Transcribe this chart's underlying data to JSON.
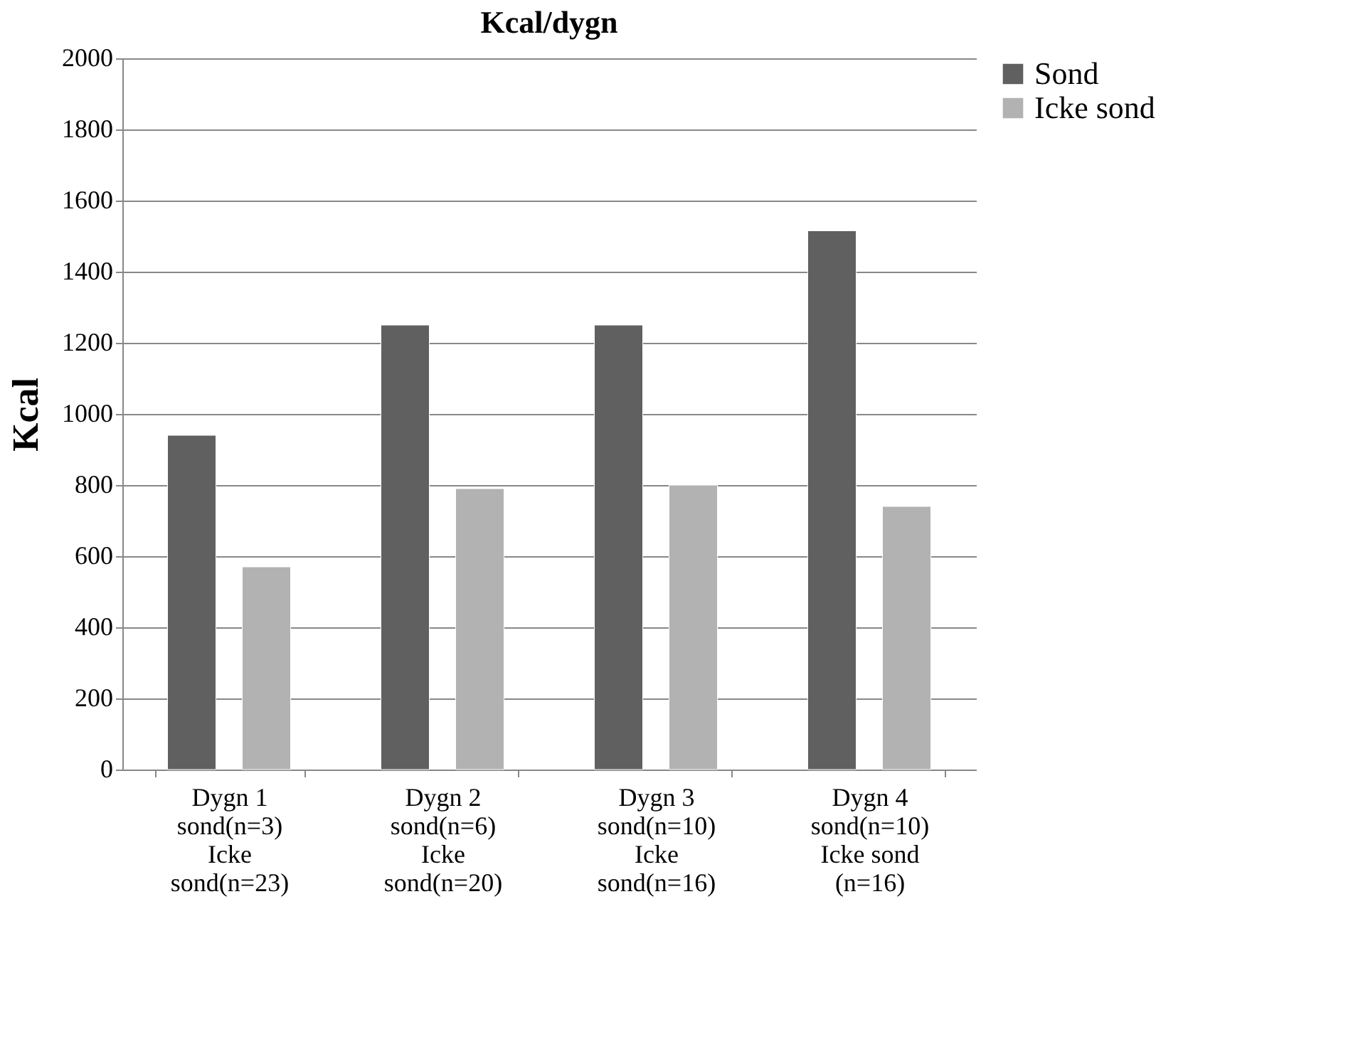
{
  "chart_data": {
    "type": "bar",
    "title": "Kcal/dygn",
    "ylabel": "Kcal",
    "categories": [
      "Dygn 1 sond(n=3) Icke sond(n=23)",
      "Dygn 2 sond(n=6) Icke sond(n=20)",
      "Dygn 3 sond(n=10) Icke sond(n=16)",
      "Dygn 4 sond(n=10) Icke sond (n=16)"
    ],
    "series": [
      {
        "name": "Sond",
        "color": "#606060",
        "values": [
          940,
          1250,
          1250,
          1515
        ]
      },
      {
        "name": "Icke sond",
        "color": "#b2b2b2",
        "values": [
          570,
          790,
          800,
          740
        ]
      }
    ],
    "ylim": [
      0,
      2000
    ],
    "yticks": [
      0,
      200,
      400,
      600,
      800,
      1000,
      1200,
      1400,
      1600,
      1800,
      2000
    ],
    "grid": "y",
    "legend": "right"
  }
}
